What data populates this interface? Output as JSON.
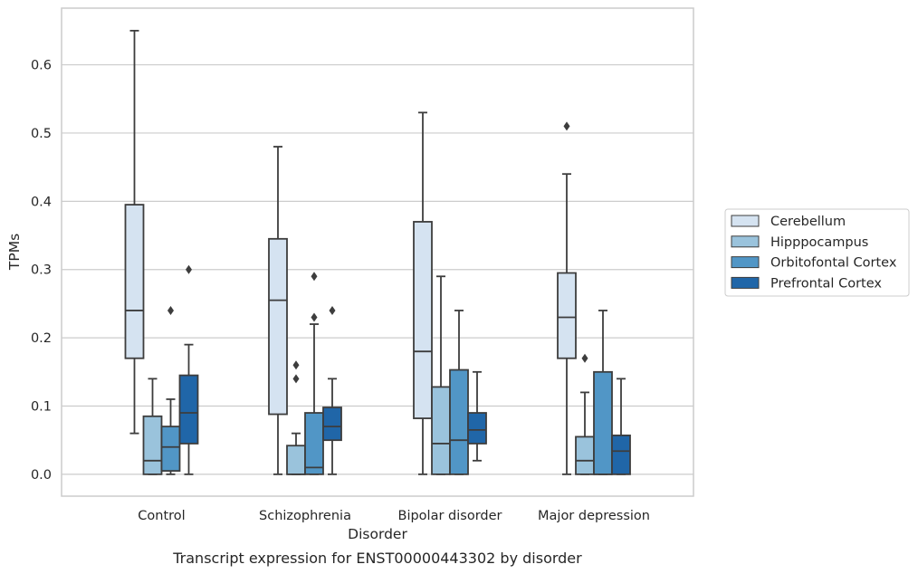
{
  "chart_data": {
    "type": "box",
    "xlabel": "Disorder",
    "ylabel": "TPMs",
    "caption": "Transcript expression for ENST00000443302 by disorder",
    "ylim": [
      -0.032,
      0.683
    ],
    "yticks": [
      "0.0",
      "0.1",
      "0.2",
      "0.3",
      "0.4",
      "0.5",
      "0.6"
    ],
    "grid": "horizontal",
    "legend_position": "right",
    "categories": [
      "Control",
      "Schizophrenia",
      "Bipolar disorder",
      "Major depression"
    ],
    "series": [
      {
        "name": "Cerebellum",
        "color": "#d5e3f1",
        "boxes": [
          {
            "whislo": 0.06,
            "q1": 0.17,
            "med": 0.24,
            "q3": 0.395,
            "whishi": 0.65,
            "fliers": []
          },
          {
            "whislo": 0.0,
            "q1": 0.088,
            "med": 0.255,
            "q3": 0.345,
            "whishi": 0.48,
            "fliers": []
          },
          {
            "whislo": 0.0,
            "q1": 0.082,
            "med": 0.18,
            "q3": 0.37,
            "whishi": 0.53,
            "fliers": []
          },
          {
            "whislo": 0.0,
            "q1": 0.17,
            "med": 0.23,
            "q3": 0.295,
            "whishi": 0.44,
            "fliers": [
              0.51
            ]
          }
        ]
      },
      {
        "name": "Hipppocampus",
        "color": "#9ac3dc",
        "boxes": [
          {
            "whislo": 0.0,
            "q1": 0.0,
            "med": 0.02,
            "q3": 0.085,
            "whishi": 0.14,
            "fliers": []
          },
          {
            "whislo": 0.0,
            "q1": 0.0,
            "med": 0.0,
            "q3": 0.042,
            "whishi": 0.06,
            "fliers": [
              0.14,
              0.16
            ]
          },
          {
            "whislo": 0.0,
            "q1": 0.0,
            "med": 0.045,
            "q3": 0.128,
            "whishi": 0.29,
            "fliers": []
          },
          {
            "whislo": 0.0,
            "q1": 0.0,
            "med": 0.02,
            "q3": 0.055,
            "whishi": 0.12,
            "fliers": [
              0.17
            ]
          }
        ]
      },
      {
        "name": "Orbitofontal Cortex",
        "color": "#5196c6",
        "boxes": [
          {
            "whislo": 0.0,
            "q1": 0.005,
            "med": 0.04,
            "q3": 0.07,
            "whishi": 0.11,
            "fliers": [
              0.24
            ]
          },
          {
            "whislo": 0.0,
            "q1": 0.0,
            "med": 0.01,
            "q3": 0.09,
            "whishi": 0.22,
            "fliers": [
              0.23,
              0.29
            ]
          },
          {
            "whislo": 0.0,
            "q1": 0.0,
            "med": 0.05,
            "q3": 0.153,
            "whishi": 0.24,
            "fliers": []
          },
          {
            "whislo": 0.0,
            "q1": 0.0,
            "med": 0.0,
            "q3": 0.15,
            "whishi": 0.24,
            "fliers": []
          }
        ]
      },
      {
        "name": "Prefrontal Cortex",
        "color": "#2066a8",
        "boxes": [
          {
            "whislo": 0.0,
            "q1": 0.045,
            "med": 0.09,
            "q3": 0.145,
            "whishi": 0.19,
            "fliers": [
              0.3
            ]
          },
          {
            "whislo": 0.0,
            "q1": 0.05,
            "med": 0.07,
            "q3": 0.098,
            "whishi": 0.14,
            "fliers": [
              0.24
            ]
          },
          {
            "whislo": 0.02,
            "q1": 0.045,
            "med": 0.065,
            "q3": 0.09,
            "whishi": 0.15,
            "fliers": []
          },
          {
            "whislo": 0.0,
            "q1": 0.0,
            "med": 0.034,
            "q3": 0.057,
            "whishi": 0.14,
            "fliers": []
          }
        ]
      }
    ]
  }
}
